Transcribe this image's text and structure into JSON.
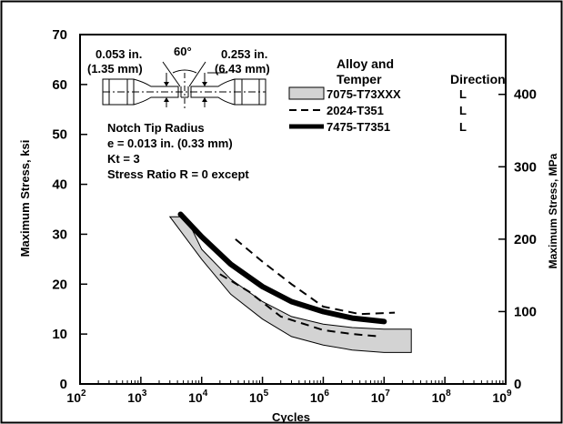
{
  "chart_data": {
    "type": "line",
    "xlabel": "Cycles",
    "ylabel": "Maximum Stress, ksi",
    "y2label": "Maximum Stress, MPa",
    "xscale": "log",
    "xlim": [
      100,
      1000000000
    ],
    "ylim": [
      0,
      70
    ],
    "y2lim": [
      0,
      482.6
    ],
    "x_tick_values": [
      100,
      1000,
      10000,
      100000,
      1000000,
      10000000,
      100000000,
      1000000000
    ],
    "x_tick_labels": [
      {
        "base": "10",
        "exp": "2"
      },
      {
        "base": "10",
        "exp": "3"
      },
      {
        "base": "10",
        "exp": "4"
      },
      {
        "base": "10",
        "exp": "5"
      },
      {
        "base": "10",
        "exp": "6"
      },
      {
        "base": "10",
        "exp": "7"
      },
      {
        "base": "10",
        "exp": "8"
      },
      {
        "base": "10",
        "exp": "9"
      }
    ],
    "y_ticks": [
      0,
      10,
      20,
      30,
      40,
      50,
      60,
      70
    ],
    "y2_ticks": [
      0,
      100,
      200,
      300,
      400
    ],
    "grid": false,
    "legend": {
      "header_alloy": [
        "Alloy and",
        "Temper"
      ],
      "header_direction": "Direction",
      "entries": [
        {
          "label": "7075-T73XXX",
          "direction": "L",
          "style": "band"
        },
        {
          "label": "2024-T351",
          "direction": "L",
          "style": "dashed"
        },
        {
          "label": "7475-T7351",
          "direction": "L",
          "style": "thick"
        }
      ]
    },
    "annotations": {
      "dim_left": [
        "0.053 in.",
        "(1.35 mm)"
      ],
      "angle": "60°",
      "dim_right": [
        "0.253 in.",
        "(6.43 mm)"
      ],
      "notes": [
        "Notch Tip Radius",
        "e = 0.013 in. (0.33 mm)",
        "Kt = 3",
        "Stress Ratio R = 0 except"
      ]
    },
    "series": [
      {
        "name": "7075-T73XXX",
        "style": "band",
        "upper": [
          [
            3000,
            33.5
          ],
          [
            5500,
            33.5
          ],
          [
            10000,
            27
          ],
          [
            30000,
            21
          ],
          [
            100000,
            16.5
          ],
          [
            300000,
            13.5
          ],
          [
            1000000,
            12
          ],
          [
            3000000,
            11.3
          ],
          [
            10000000,
            11
          ],
          [
            28000000,
            11
          ]
        ],
        "lower": [
          [
            3000,
            33.5
          ],
          [
            10000,
            25
          ],
          [
            30000,
            18
          ],
          [
            100000,
            13
          ],
          [
            300000,
            9.5
          ],
          [
            1000000,
            7.8
          ],
          [
            3000000,
            6.8
          ],
          [
            10000000,
            6.3
          ],
          [
            28000000,
            6.3
          ]
        ]
      },
      {
        "name": "2024-T351",
        "style": "dashed",
        "segments": [
          [
            [
              36000,
              29
            ],
            [
              100000,
              24.5
            ],
            [
              300000,
              20
            ],
            [
              1000000,
              15.5
            ],
            [
              4000000,
              14
            ],
            [
              15000000,
              14.3
            ]
          ],
          [
            [
              20000,
              22
            ],
            [
              60000,
              18.5
            ],
            [
              200000,
              13.5
            ],
            [
              1000000,
              10.8
            ],
            [
              3000000,
              10
            ],
            [
              9000000,
              9.5
            ]
          ]
        ]
      },
      {
        "name": "7475-T7351",
        "style": "thick",
        "points": [
          [
            4500,
            34
          ],
          [
            10000,
            29.5
          ],
          [
            30000,
            24
          ],
          [
            100000,
            19.5
          ],
          [
            300000,
            16.5
          ],
          [
            1000000,
            14.5
          ],
          [
            3000000,
            13.2
          ],
          [
            10000000,
            12.5
          ]
        ]
      }
    ],
    "colors": {
      "band_fill": "#d3d3d3",
      "line": "#000000",
      "background": "#ffffff"
    }
  }
}
